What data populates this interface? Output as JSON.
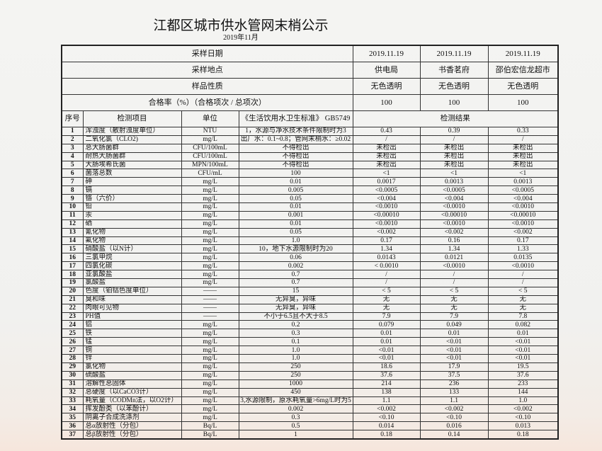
{
  "title": "江都区城市供水管网末梢公示",
  "subtitle": "2019年11月",
  "meta": [
    {
      "label": "采样日期",
      "values": [
        "2019.11.19",
        "2019.11.19",
        "2019.11.19"
      ]
    },
    {
      "label": "采样地点",
      "values": [
        "供电局",
        "书香茗府",
        "邵伯宏信龙超市"
      ]
    },
    {
      "label": "样品性质",
      "values": [
        "无色透明",
        "无色透明",
        "无色透明"
      ]
    },
    {
      "label": "合格率（%）（合格项次 / 总项次）",
      "values": [
        "100",
        "100",
        "100"
      ]
    }
  ],
  "headers": {
    "seq": "序号",
    "item": "检测项目",
    "unit": "单位",
    "standard": "《生活饮用水卫生标准》 GB5749",
    "results": "检测结果"
  },
  "rows": [
    {
      "seq": "1",
      "item": "浑浊度（散射浊度单位）",
      "unit": "NTU",
      "standard": "1，水源与净水技术条件限制时为3",
      "results": [
        "0.43",
        "0.39",
        "0.33"
      ]
    },
    {
      "seq": "2",
      "item": "二氧化氯（CLO2)",
      "unit": "mg/L",
      "standard": "出厂水：0.1~0.8；管网末梢水：≥0.02",
      "results": [
        "/",
        "/",
        "/"
      ]
    },
    {
      "seq": "3",
      "item": "总大肠菌群",
      "unit": "CFU/100mL",
      "standard": "不得检出",
      "results": [
        "未检出",
        "未检出",
        "未检出"
      ]
    },
    {
      "seq": "4",
      "item": "耐热大肠菌群",
      "unit": "CFU/100mL",
      "standard": "不得检出",
      "results": [
        "未检出",
        "未检出",
        "未检出"
      ]
    },
    {
      "seq": "5",
      "item": "大肠埃希氏菌",
      "unit": "MPN/100mL",
      "standard": "不得检出",
      "results": [
        "未检出",
        "未检出",
        "未检出"
      ]
    },
    {
      "seq": "6",
      "item": "菌落总数",
      "unit": "CFU/mL",
      "standard": "100",
      "results": [
        "<1",
        "<1",
        "<1"
      ]
    },
    {
      "seq": "7",
      "item": "砷",
      "unit": "mg/L",
      "standard": "0.01",
      "results": [
        "0.0017",
        "0.0013",
        "0.0013"
      ]
    },
    {
      "seq": "8",
      "item": "镉",
      "unit": "mg/L",
      "standard": "0.005",
      "results": [
        "<0.0005",
        "<0.0005",
        "<0.0005"
      ]
    },
    {
      "seq": "9",
      "item": "铬（六价）",
      "unit": "mg/L",
      "standard": "0.05",
      "results": [
        "<0.004",
        "<0.004",
        "<0.004"
      ]
    },
    {
      "seq": "10",
      "item": "铅",
      "unit": "mg/L",
      "standard": "0.01",
      "results": [
        "<0.0010",
        "<0.0010",
        "<0.0010"
      ]
    },
    {
      "seq": "11",
      "item": "汞",
      "unit": "mg/L",
      "standard": "0.001",
      "results": [
        "<0.00010",
        "<0.00010",
        "<0.00010"
      ]
    },
    {
      "seq": "12",
      "item": "硒",
      "unit": "mg/L",
      "standard": "0.01",
      "results": [
        "<0.0010",
        "<0.0010",
        "<0.0010"
      ]
    },
    {
      "seq": "13",
      "item": "氰化物",
      "unit": "mg/L",
      "standard": "0.05",
      "results": [
        "<0.002",
        "<0.002",
        "<0.002"
      ]
    },
    {
      "seq": "14",
      "item": "氟化物",
      "unit": "mg/L",
      "standard": "1.0",
      "results": [
        "0.17",
        "0.16",
        "0.17"
      ]
    },
    {
      "seq": "15",
      "item": "硝酸盐（以N计）",
      "unit": "mg/L",
      "standard": "10，地下水源限制时为20",
      "results": [
        "1.34",
        "1.34",
        "1.33"
      ]
    },
    {
      "seq": "16",
      "item": "三氯甲烷",
      "unit": "mg/L",
      "standard": "0.06",
      "results": [
        "0.0143",
        "0.0121",
        "0.0135"
      ]
    },
    {
      "seq": "17",
      "item": "四氯化碳",
      "unit": "mg/L",
      "standard": "0.002",
      "results": [
        "< 0.0010",
        "<0.0010",
        "<0.0010"
      ]
    },
    {
      "seq": "18",
      "item": "亚氯酸盐",
      "unit": "mg/L",
      "standard": "0.7",
      "results": [
        "/",
        "/",
        "/"
      ]
    },
    {
      "seq": "19",
      "item": "氯酸盐",
      "unit": "mg/L",
      "standard": "0.7",
      "results": [
        "/",
        "/",
        "/"
      ]
    },
    {
      "seq": "20",
      "item": "色度（铂钴色度单位）",
      "unit": "——",
      "standard": "15",
      "results": [
        "< 5",
        "< 5",
        "< 5"
      ]
    },
    {
      "seq": "21",
      "item": "臭和味",
      "unit": "——",
      "standard": "无异臭，异味",
      "results": [
        "无",
        "无",
        "无"
      ]
    },
    {
      "seq": "22",
      "item": "肉眼可见物",
      "unit": "——",
      "standard": "无异臭，异味",
      "results": [
        "无",
        "无",
        "无"
      ]
    },
    {
      "seq": "23",
      "item": "PH值",
      "unit": "——",
      "standard": "不小于6.5且不大于8.5",
      "results": [
        "7.9",
        "7.9",
        "7.8"
      ]
    },
    {
      "seq": "24",
      "item": "铝",
      "unit": "mg/L",
      "standard": "0.2",
      "results": [
        "0.079",
        "0.049",
        "0.082"
      ]
    },
    {
      "seq": "25",
      "item": "铁",
      "unit": "mg/L",
      "standard": "0.3",
      "results": [
        "0.01",
        "0.01",
        "0.01"
      ]
    },
    {
      "seq": "26",
      "item": "锰",
      "unit": "mg/L",
      "standard": "0.1",
      "results": [
        "0.01",
        "<0.01",
        "<0.01"
      ]
    },
    {
      "seq": "27",
      "item": "铜",
      "unit": "mg/L",
      "standard": "1.0",
      "results": [
        "<0.01",
        "<0.01",
        "<0.01"
      ]
    },
    {
      "seq": "28",
      "item": "锌",
      "unit": "mg/L",
      "standard": "1.0",
      "results": [
        "<0.01",
        "<0.01",
        "<0.01"
      ]
    },
    {
      "seq": "29",
      "item": "氯化物",
      "unit": "mg/L",
      "standard": "250",
      "results": [
        "18.6",
        "17.9",
        "19.5"
      ]
    },
    {
      "seq": "30",
      "item": "硫酸盐",
      "unit": "mg/L",
      "standard": "250",
      "results": [
        "37.6",
        "37.5",
        "37.6"
      ]
    },
    {
      "seq": "31",
      "item": "溶解性总固体",
      "unit": "mg/L",
      "standard": "1000",
      "results": [
        "214",
        "236",
        "233"
      ]
    },
    {
      "seq": "32",
      "item": "总硬度（以CaCO3计）",
      "unit": "mg/L",
      "standard": "450",
      "results": [
        "138",
        "133",
        "144"
      ]
    },
    {
      "seq": "33",
      "item": "耗氧量（CODMn法，以O2计）",
      "unit": "mg/L",
      "standard": "3,水源限制，原水耗氧量>6mg/L时为5",
      "results": [
        "1.1",
        "1.1",
        "1.0"
      ]
    },
    {
      "seq": "34",
      "item": "挥发酚类（以苯酚计）",
      "unit": "mg/L",
      "standard": "0.002",
      "results": [
        "<0.002",
        "<0.002",
        "<0.002"
      ]
    },
    {
      "seq": "35",
      "item": "阴离子合成洗涤剂",
      "unit": "mg/L",
      "standard": "0.3",
      "results": [
        "<0.10",
        "<0.10",
        "<0.10"
      ]
    },
    {
      "seq": "36",
      "item": "总α放射性（分包）",
      "unit": "Bq/L",
      "standard": "0.5",
      "results": [
        "0.014",
        "0.016",
        "0.013"
      ]
    },
    {
      "seq": "37",
      "item": "总β放射性（分包）",
      "unit": "Bq/L",
      "standard": "1",
      "results": [
        "0.18",
        "0.14",
        "0.18"
      ]
    }
  ]
}
